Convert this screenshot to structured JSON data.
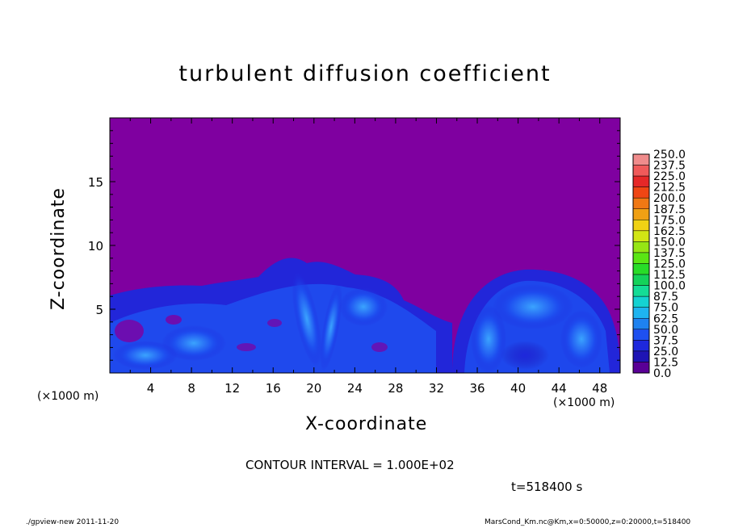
{
  "chart_data": {
    "type": "heatmap",
    "title": "turbulent diffusion coefficient",
    "xlabel": "X-coordinate",
    "ylabel": "Z-coordinate",
    "x_unit": "(×1000 m)",
    "xlim": [
      0,
      50
    ],
    "ylim": [
      0,
      20
    ],
    "x_ticks": [
      4,
      8,
      12,
      16,
      20,
      24,
      28,
      32,
      36,
      40,
      44,
      48
    ],
    "y_ticks": [
      5,
      10,
      15
    ],
    "colorbar": {
      "levels": [
        "250.0",
        "237.5",
        "225.0",
        "212.5",
        "200.0",
        "187.5",
        "175.0",
        "162.5",
        "150.0",
        "137.5",
        "125.0",
        "112.5",
        "100.0",
        "87.5",
        "75.0",
        "62.5",
        "50.0",
        "37.5",
        "25.0",
        "12.5",
        "0.0"
      ],
      "colors": [
        "#f08c8c",
        "#f05a5a",
        "#e62828",
        "#f04614",
        "#f07814",
        "#f0a014",
        "#f0d214",
        "#d2e614",
        "#96e614",
        "#5ae614",
        "#28dc28",
        "#14d25a",
        "#14dc96",
        "#14d2d2",
        "#1eb4f0",
        "#1e82f0",
        "#1e50f0",
        "#1e28dc",
        "#1e14b4",
        "#5a0096"
      ]
    },
    "background_color": "#7f00a0",
    "contour_interval": "CONTOUR INTERVAL = 1.000E+02",
    "time": "t=518400 s"
  },
  "footer": {
    "left": "./gpview-new   2011-11-20",
    "right": "MarsCond_Km.nc@Km,x=0:50000,z=0:20000,t=518400"
  }
}
